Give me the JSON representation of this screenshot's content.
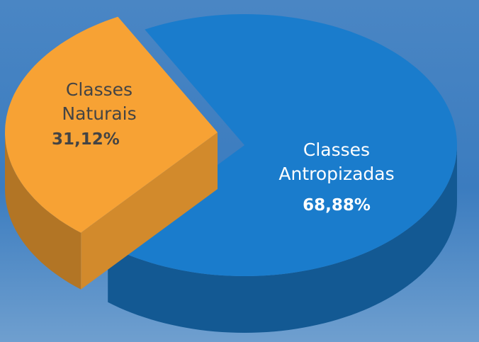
{
  "chart_data": {
    "type": "pie",
    "categories": [
      "Classes Naturais",
      "Classes Antropizadas"
    ],
    "values": [
      31.12,
      68.88
    ],
    "value_labels": [
      "31,12%",
      "68,88%"
    ],
    "colors": [
      "#f7a234",
      "#1a7ccc"
    ]
  }
}
